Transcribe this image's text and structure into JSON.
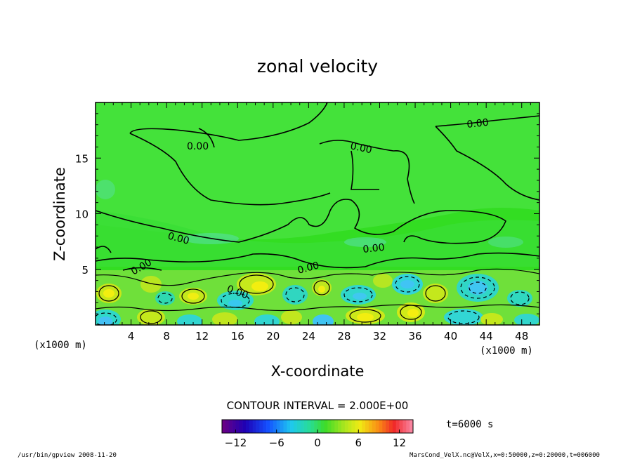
{
  "chart_data": {
    "type": "heatmap",
    "title": "zonal velocity",
    "xlabel": "X-coordinate",
    "ylabel": "Z-coordinate",
    "x_unit": "(x1000 m)",
    "y_unit": "(x1000 m)",
    "xlim": [
      0,
      50
    ],
    "ylim": [
      0,
      20
    ],
    "x_ticks": [
      4,
      8,
      12,
      16,
      20,
      24,
      28,
      32,
      36,
      40,
      44,
      48
    ],
    "y_ticks": [
      5,
      10,
      15
    ],
    "contour_interval_text": "CONTOUR INTERVAL = 2.000E+00",
    "contour_labels": [
      "0.00",
      "0.00",
      "0.00",
      "0.00",
      "0.00",
      "0.00",
      "0.00",
      "0.00"
    ],
    "colorbar": {
      "range": [
        -14,
        14
      ],
      "ticks": [
        -12,
        -6,
        0,
        6,
        12
      ],
      "colormap": "rainbow (purple-blue-cyan-green-yellow-red-pink)"
    },
    "time_label": "t=6000 s",
    "footer_left": "/usr/bin/gpview   2008-11-20",
    "footer_right": "MarsCond_VelX.nc@VelX,x=0:50000,z=0:20000,t=006000"
  }
}
